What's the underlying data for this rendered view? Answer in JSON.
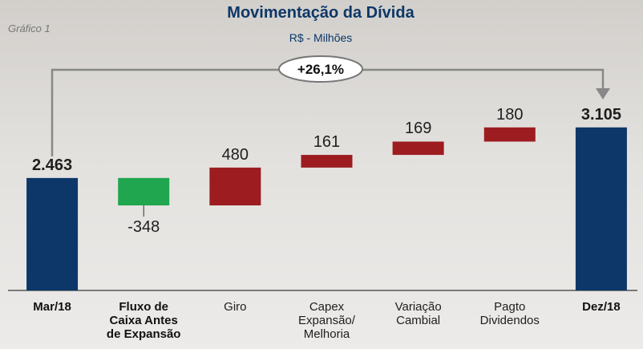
{
  "chart_note": "Gráfico 1",
  "chart_data": {
    "type": "waterfall",
    "title": "Movimentação da Dívida",
    "subtitle": "R$ - Milhões",
    "annotation": "+26,1%",
    "categories": [
      "Mar/18",
      "Fluxo de\nCaixa Antes\nde Expansão",
      "Giro",
      "Capex\nExpansão/\nMelhoria",
      "Variação\nCambial",
      "Pagto\nDividendos",
      "Dez/18"
    ],
    "values": [
      2463,
      -348,
      480,
      161,
      169,
      180,
      3105
    ],
    "value_labels": [
      "2.463",
      "-348",
      "480",
      "161",
      "169",
      "180",
      "3.105"
    ],
    "colors": {
      "total": "#0d3768",
      "increase": "#9c1c20",
      "decrease": "#1fa64f"
    },
    "ylim": [
      1036,
      3500
    ]
  }
}
